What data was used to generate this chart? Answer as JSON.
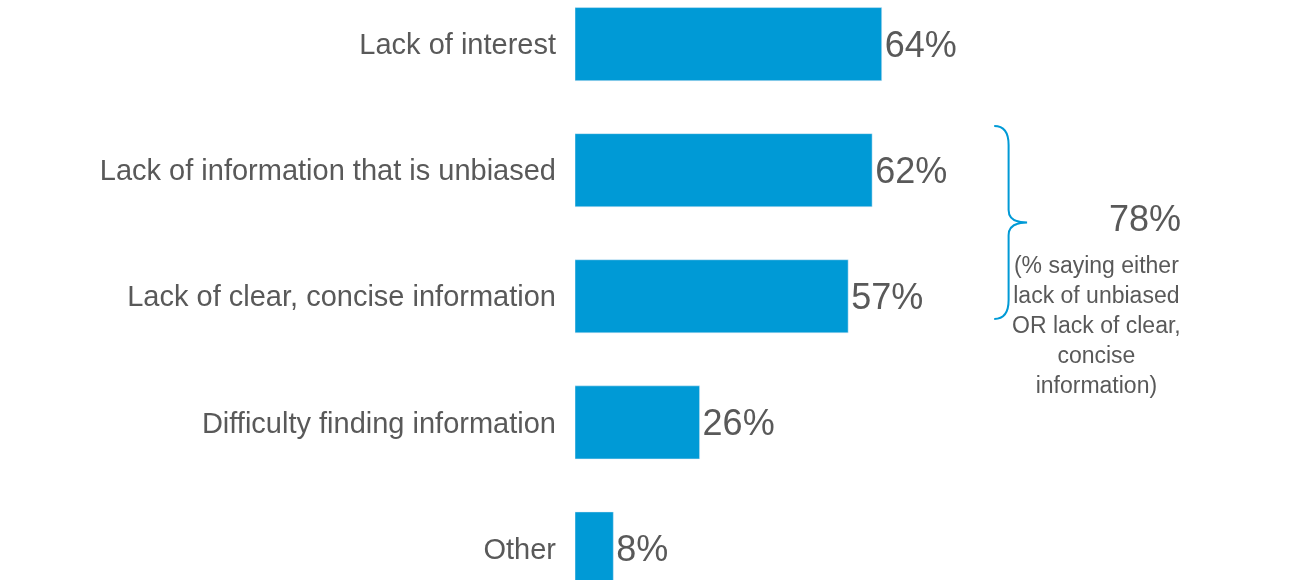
{
  "chart_data": {
    "type": "bar",
    "orientation": "horizontal",
    "categories": [
      "Lack of interest",
      "Lack of information that is unbiased",
      "Lack of clear, concise information",
      "Difficulty finding information",
      "Other"
    ],
    "values": [
      64,
      62,
      57,
      26,
      8
    ],
    "value_labels": [
      "64%",
      "62%",
      "57%",
      "26%",
      "8%"
    ],
    "color": "#009ad6",
    "annotations": [
      "78%",
      "(% saying either lack of unbiased OR lack of clear, concise information)"
    ]
  }
}
